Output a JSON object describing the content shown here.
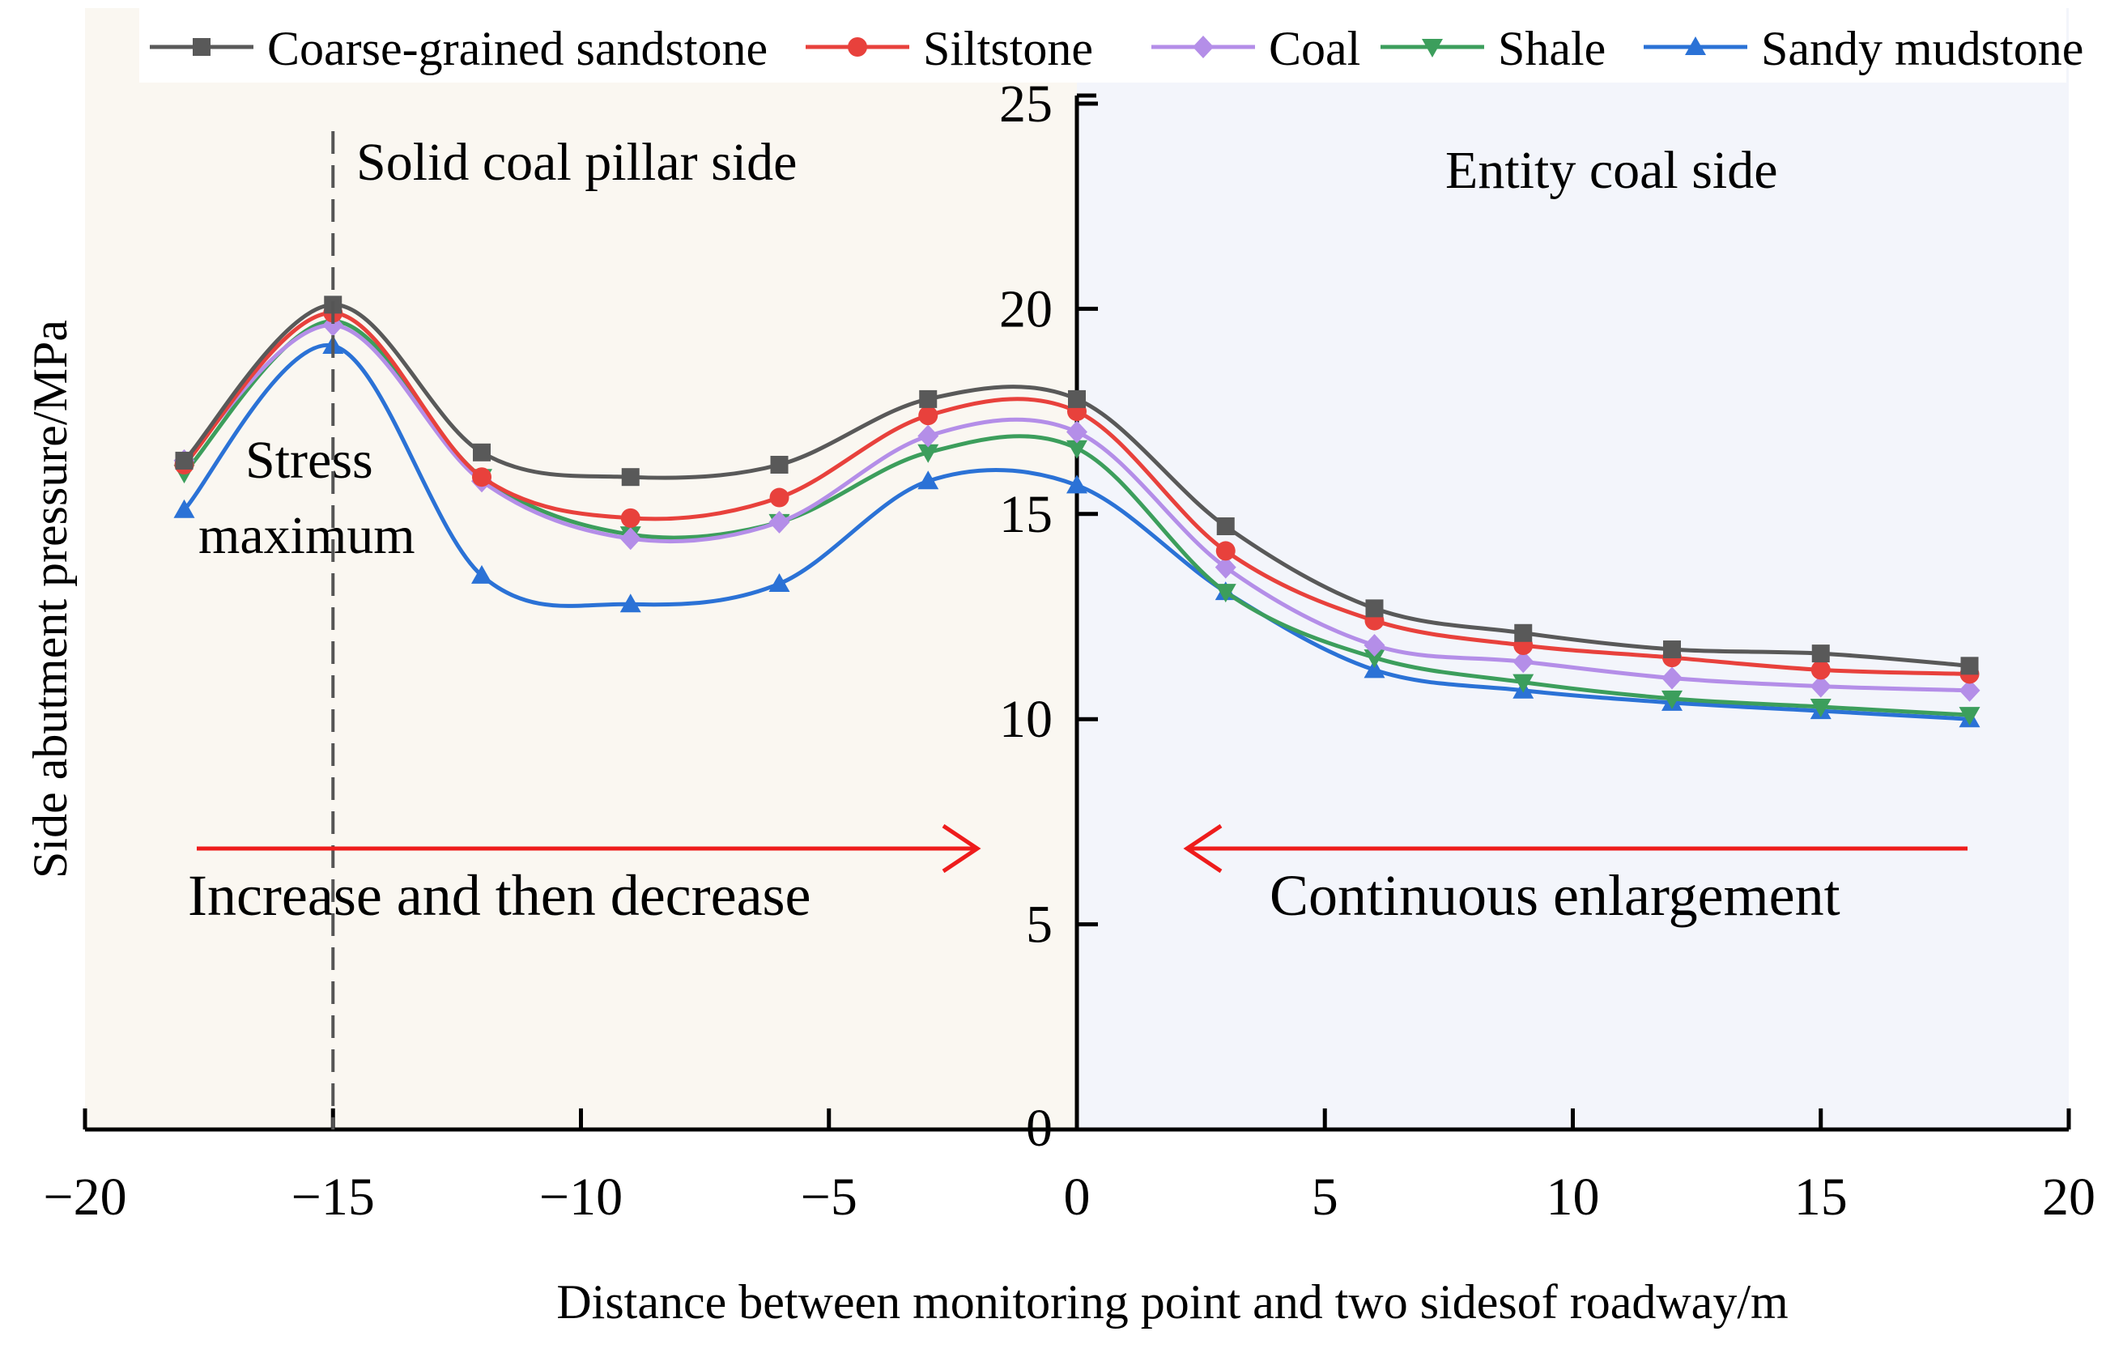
{
  "chart_data": {
    "type": "line",
    "title": "",
    "xlabel": "Distance between monitoring point and two sidesof roadway/m",
    "ylabel": "Side abutment pressure/MPa",
    "xlim": [
      -20,
      20
    ],
    "ylim": [
      0,
      25
    ],
    "x_ticks": [
      -20,
      -15,
      -10,
      -5,
      0,
      5,
      10,
      15,
      20
    ],
    "x_tick_labels": [
      "−20",
      "−15",
      "−10",
      "−5",
      "0",
      "5",
      "10",
      "15",
      "20"
    ],
    "y_ticks": [
      0,
      5,
      10,
      15,
      20,
      25
    ],
    "y_tick_labels": [
      "0",
      "5",
      "10",
      "15",
      "20",
      "25"
    ],
    "grid": false,
    "legend_position": "top",
    "x": [
      -18,
      -15,
      -12,
      -9,
      -6,
      -3,
      0,
      3,
      6,
      9,
      12,
      15,
      18
    ],
    "series": [
      {
        "name": "Coarse-grained sandstone",
        "color": "#595959",
        "marker": "square",
        "values": [
          16.3,
          20.1,
          16.5,
          15.9,
          16.2,
          17.8,
          17.8,
          14.7,
          12.7,
          12.1,
          11.7,
          11.6,
          11.3
        ]
      },
      {
        "name": "Siltstone",
        "color": "#e8413c",
        "marker": "circle",
        "values": [
          16.2,
          19.9,
          15.9,
          14.9,
          15.4,
          17.4,
          17.5,
          14.1,
          12.4,
          11.8,
          11.5,
          11.2,
          11.1
        ]
      },
      {
        "name": "Coal",
        "color": "#b48ee8",
        "marker": "diamond",
        "values": [
          16.3,
          19.6,
          15.8,
          14.4,
          14.8,
          16.9,
          17.0,
          13.7,
          11.8,
          11.4,
          11.0,
          10.8,
          10.7
        ]
      },
      {
        "name": "Shale",
        "color": "#3c9e5c",
        "marker": "triangle-down",
        "values": [
          16.0,
          19.7,
          15.9,
          14.5,
          14.8,
          16.5,
          16.6,
          13.1,
          11.5,
          10.9,
          10.5,
          10.3,
          10.1
        ]
      },
      {
        "name": "Sandy mudstone",
        "color": "#2b72d6",
        "marker": "triangle-up",
        "values": [
          15.1,
          19.1,
          13.5,
          12.8,
          13.3,
          15.8,
          15.7,
          13.1,
          11.2,
          10.7,
          10.4,
          10.2,
          10.0
        ]
      }
    ],
    "annotations": {
      "left_region": "Solid coal pillar side",
      "right_region": "Entity coal side",
      "peak_label_line1": "Stress",
      "peak_label_line2": "maximum",
      "peak_x": -15,
      "left_trend": "Increase and then decrease",
      "right_trend": "Continuous enlargement"
    },
    "colors": {
      "left_background": "#faf7f1",
      "right_background": "#f3f5fb",
      "arrow": "#ee1c1c"
    }
  }
}
